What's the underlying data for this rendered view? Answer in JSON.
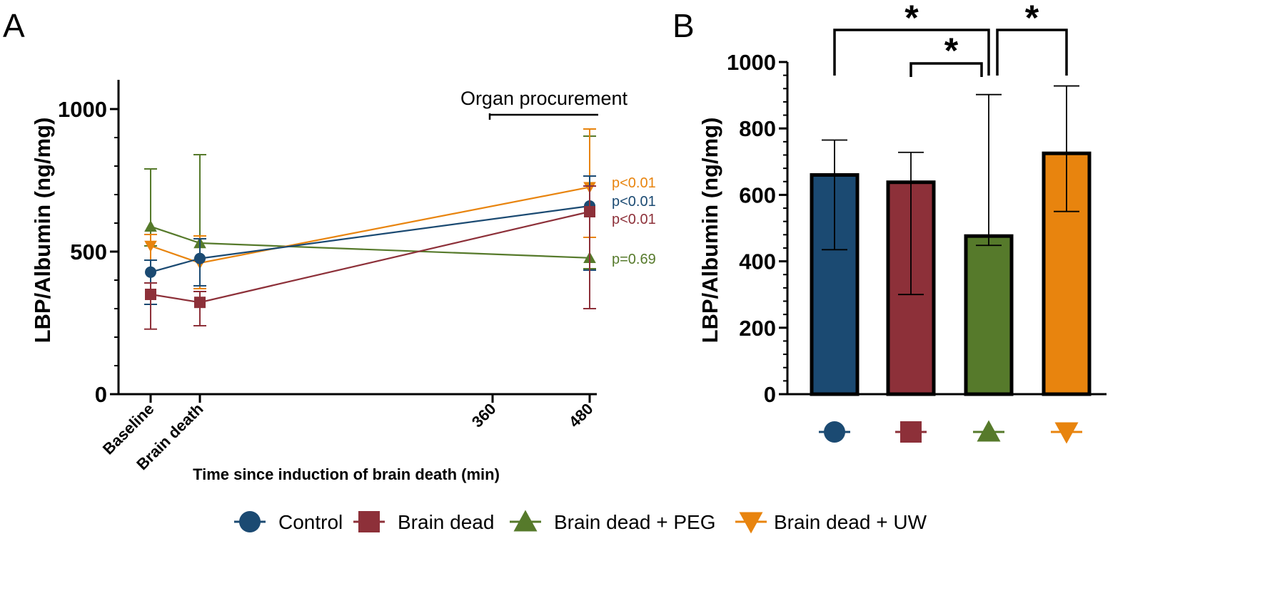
{
  "colors": {
    "control": "#1b4a72",
    "brain_dead": "#8d3039",
    "peg": "#567a2b",
    "uw": "#e8840e",
    "axis": "#000000"
  },
  "legend": [
    {
      "key": "control",
      "label": "Control",
      "marker": "circle"
    },
    {
      "key": "brain_dead",
      "label": "Brain dead",
      "marker": "square"
    },
    {
      "key": "peg",
      "label": "Brain dead + PEG",
      "marker": "triangle-up"
    },
    {
      "key": "uw",
      "label": "Brain dead + UW",
      "marker": "triangle-down"
    }
  ],
  "chart_data": [
    {
      "panel": "A",
      "type": "line",
      "ylabel": "LBP/Albumin (ng/mg)",
      "xlabel": "Time since induction of brain death (min)",
      "ylim": [
        0,
        1100
      ],
      "yticks": [
        0,
        500,
        1000
      ],
      "x_positions_min": [
        -60,
        0,
        360,
        480
      ],
      "xtick_labels": [
        "Baseline",
        "Brain death",
        "360",
        "480"
      ],
      "xlim": [
        -75,
        480
      ],
      "annotation": {
        "text": "Organ procurement",
        "from": 360,
        "to": 480,
        "y": 980
      },
      "series": [
        {
          "key": "peg",
          "name": "Brain dead + PEG",
          "x": [
            -60,
            0,
            480
          ],
          "y": [
            588,
            530,
            478
          ],
          "err_low": [
            520,
            380,
            440
          ],
          "err_high": [
            790,
            840,
            905
          ],
          "p_label": "p=0.69"
        },
        {
          "key": "uw",
          "name": "Brain dead + UW",
          "x": [
            -60,
            0,
            480
          ],
          "y": [
            520,
            460,
            726
          ],
          "err_low": [
            470,
            370,
            550
          ],
          "err_high": [
            560,
            555,
            930
          ],
          "p_label": "p<0.01"
        },
        {
          "key": "control",
          "name": "Control",
          "x": [
            -60,
            0,
            480
          ],
          "y": [
            428,
            476,
            660
          ],
          "err_low": [
            315,
            380,
            435
          ],
          "err_high": [
            470,
            545,
            765
          ],
          "p_label": "p<0.01"
        },
        {
          "key": "brain_dead",
          "name": "Brain dead",
          "x": [
            -60,
            0,
            480
          ],
          "y": [
            350,
            322,
            640
          ],
          "err_low": [
            228,
            240,
            300
          ],
          "err_high": [
            390,
            360,
            730
          ],
          "p_label": "p<0.01"
        }
      ]
    },
    {
      "panel": "B",
      "type": "bar",
      "ylabel": "LBP/Albumin (ng/mg)",
      "ylim": [
        0,
        1000
      ],
      "yticks": [
        0,
        200,
        400,
        600,
        800,
        1000
      ],
      "categories": [
        "Control",
        "Brain dead",
        "Brain dead + PEG",
        "Brain dead + UW"
      ],
      "keys": [
        "control",
        "brain_dead",
        "peg",
        "uw"
      ],
      "values": [
        660,
        638,
        476,
        725
      ],
      "err_low": [
        435,
        300,
        448,
        550
      ],
      "err_high": [
        765,
        728,
        902,
        928
      ],
      "significance": [
        {
          "from": 0,
          "to": 2,
          "label": "*",
          "level": "top"
        },
        {
          "from": 1,
          "to": 2,
          "label": "*",
          "level": "low"
        },
        {
          "from": 2,
          "to": 3,
          "label": "*",
          "level": "top"
        }
      ]
    }
  ],
  "panels": {
    "a_label": "A",
    "b_label": "B"
  }
}
